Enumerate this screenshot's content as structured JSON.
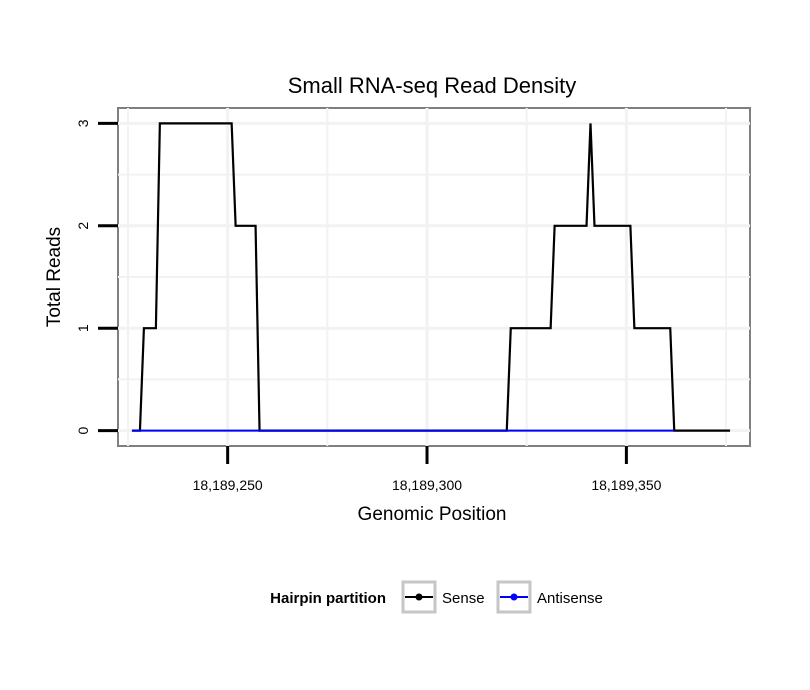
{
  "chart_data": {
    "type": "line",
    "title": "Small RNA-seq Read Density",
    "xlabel": "Genomic Position",
    "ylabel": "Total Reads",
    "xlim": [
      18189222.5,
      18189381
    ],
    "ylim": [
      -0.15,
      3.15
    ],
    "xticks": [
      18189250,
      18189300,
      18189350
    ],
    "xtick_labels": [
      "18,189,250",
      "18,189,300",
      "18,189,350"
    ],
    "yticks": [
      0,
      1,
      2,
      3
    ],
    "ytick_labels": [
      "0",
      "1",
      "2",
      "3"
    ],
    "grid": true,
    "legend": {
      "title": "Hairpin partition",
      "position": "bottom",
      "entries": [
        {
          "label": "Sense",
          "color": "#000000"
        },
        {
          "label": "Antisense",
          "color": "#0000ff"
        }
      ]
    },
    "series": [
      {
        "name": "Sense",
        "color": "#000000",
        "x": [
          18189226,
          18189228,
          18189229,
          18189232,
          18189233,
          18189251,
          18189252,
          18189257,
          18189258,
          18189320,
          18189321,
          18189331,
          18189332,
          18189340,
          18189341,
          18189342,
          18189351,
          18189352,
          18189361,
          18189362,
          18189376
        ],
        "y": [
          0,
          0,
          1,
          1,
          3,
          3,
          2,
          2,
          0,
          0,
          1,
          1,
          2,
          2,
          3,
          2,
          2,
          1,
          1,
          0,
          0
        ]
      },
      {
        "name": "Antisense",
        "color": "#0000ff",
        "x": [
          18189226,
          18189258,
          18189320,
          18189362
        ],
        "y": [
          0,
          0,
          0,
          0
        ]
      }
    ]
  }
}
